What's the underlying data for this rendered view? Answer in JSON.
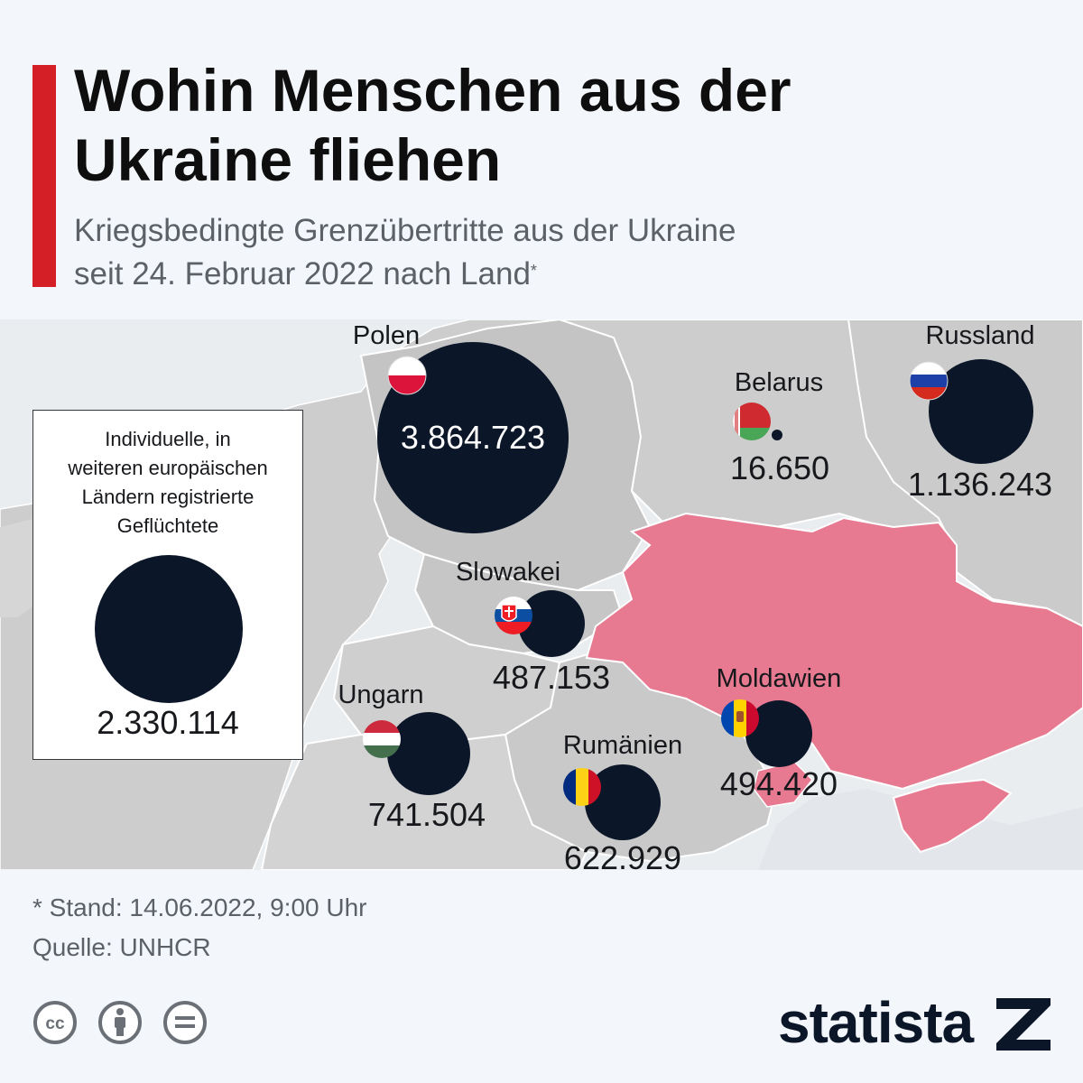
{
  "header": {
    "title_line1": "Wohin Menschen aus der",
    "title_line2": "Ukraine fliehen",
    "subtitle_line1": "Kriegsbedingte Grenzübertritte aus der Ukraine",
    "subtitle_line2": "seit 24. Februar 2022 nach Land",
    "subtitle_marker": "*"
  },
  "colors": {
    "accent": "#d51f26",
    "circle": "#0b1628",
    "ukraine": "#e77a90",
    "land": "#cbcbcb",
    "land_dark": "#b9b9b9",
    "sea": "#eaedf0"
  },
  "map": {
    "countries": [
      {
        "name": "Polen",
        "value": "3.864.723",
        "flag": "pl-flag-icon"
      },
      {
        "name": "Belarus",
        "value": "16.650",
        "flag": "by-flag-icon"
      },
      {
        "name": "Russland",
        "value": "1.136.243",
        "flag": "ru-flag-icon"
      },
      {
        "name": "Slowakei",
        "value": "487.153",
        "flag": "sk-flag-icon"
      },
      {
        "name": "Ungarn",
        "value": "741.504",
        "flag": "hu-flag-icon"
      },
      {
        "name": "Rumänien",
        "value": "622.929",
        "flag": "ro-flag-icon"
      },
      {
        "name": "Moldawien",
        "value": "494.420",
        "flag": "md-flag-icon"
      }
    ],
    "legend": {
      "line1": "Individuelle, in",
      "line2": "weiteren europäischen",
      "line3": "Ländern registrierte",
      "line4": "Geflüchtete",
      "value": "2.330.114"
    }
  },
  "footer": {
    "note": "* Stand: 14.06.2022, 9:00 Uhr",
    "source": "Quelle: UNHCR",
    "icons": [
      "cc-icon",
      "attribution-icon",
      "no-derivatives-icon"
    ],
    "brand": "statista"
  }
}
